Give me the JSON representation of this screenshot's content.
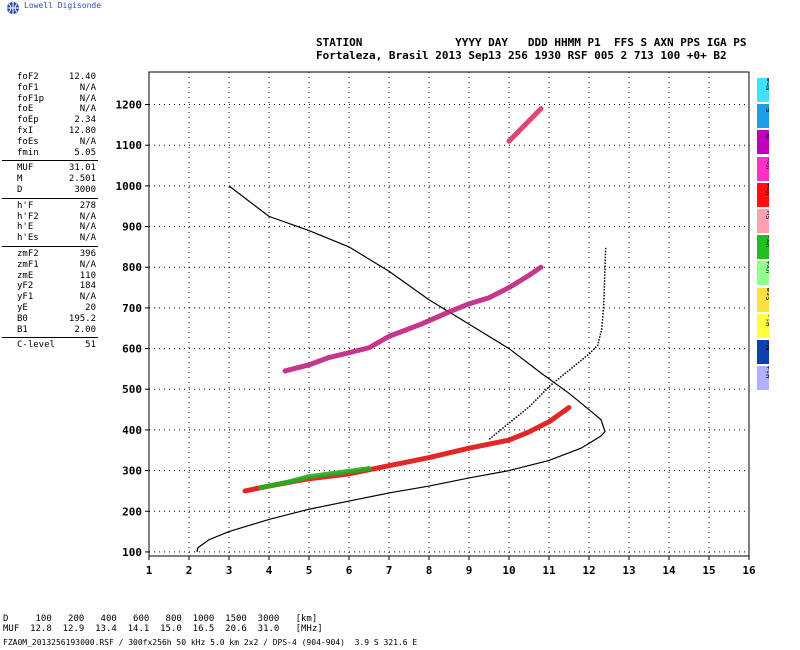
{
  "app": {
    "logo_text": "Lowell Digisonde"
  },
  "header": {
    "line1": "STATION              YYYY DAY   DDD HHMM P1  FFS S AXN PPS IGA PS",
    "line2": "Fortaleza, Brasil 2013 Sep13 256 1930 RSF 005 2 713 100 +0+ B2"
  },
  "params": [
    {
      "k": "foF2",
      "v": "12.40"
    },
    {
      "k": "foF1",
      "v": "N/A"
    },
    {
      "k": "foF1p",
      "v": "N/A"
    },
    {
      "k": "foE",
      "v": "N/A"
    },
    {
      "k": "foEp",
      "v": "2.34"
    },
    {
      "k": "fxI",
      "v": "12.80"
    },
    {
      "k": "foEs",
      "v": "N/A"
    },
    {
      "k": "fmin",
      "v": "5.05"
    },
    {
      "k": "MUF",
      "v": "31.01"
    },
    {
      "k": "M",
      "v": "2.501"
    },
    {
      "k": "D",
      "v": "3000"
    },
    {
      "k": "h'F",
      "v": "278"
    },
    {
      "k": "h'F2",
      "v": "N/A"
    },
    {
      "k": "h'E",
      "v": "N/A"
    },
    {
      "k": "h'Es",
      "v": "N/A"
    },
    {
      "k": "zmF2",
      "v": "396"
    },
    {
      "k": "zmF1",
      "v": "N/A"
    },
    {
      "k": "zmE",
      "v": "110"
    },
    {
      "k": "yF2",
      "v": "184"
    },
    {
      "k": "yF1",
      "v": "N/A"
    },
    {
      "k": "yE",
      "v": "20"
    },
    {
      "k": "B0",
      "v": "195.2"
    },
    {
      "k": "B1",
      "v": "2.00"
    },
    {
      "k": "C-level",
      "v": "51"
    }
  ],
  "legend": [
    {
      "label": "Nne",
      "color": "#40e0ff"
    },
    {
      "label": "E",
      "color": "#1aa0e8"
    },
    {
      "label": "W",
      "color": "#c000c0"
    },
    {
      "label": "Vo-",
      "color": "#ff30c8"
    },
    {
      "label": "Vo+",
      "color": "#ff1010"
    },
    {
      "label": "Sw",
      "color": "#ffa0b0"
    },
    {
      "label": "Vx-",
      "color": "#20c020"
    },
    {
      "label": "Vx+",
      "color": "#90ff90"
    },
    {
      "label": "Sse",
      "color": "#ffe040"
    },
    {
      "label": "Hi-",
      "color": "#ffff40"
    },
    {
      "label": "Nw",
      "color": "#1040b0"
    },
    {
      "label": "Hi+",
      "color": "#b0b0ff"
    }
  ],
  "footer": {
    "line1": "D     100   200   400   600   800  1000  1500  3000   [km]",
    "line2": "MUF  12.8  12.9  13.4  14.1  15.0  16.5  20.6  31.0   [MHz]",
    "line3": "FZA0M_2013256193000.RSF / 300fx256h 50 kHz 5.0 km 2x2 / DPS-4 (904-904)  3.9 S 321.6 E"
  },
  "chart_data": {
    "type": "scatter",
    "title": "",
    "xlabel": "",
    "ylabel": "",
    "xlim": [
      1,
      16
    ],
    "ylim": [
      90,
      1280
    ],
    "grid": true,
    "x_ticks": [
      1,
      2,
      3,
      4,
      5,
      6,
      7,
      8,
      9,
      10,
      11,
      12,
      13,
      14,
      15,
      16
    ],
    "y_ticks": [
      100,
      200,
      300,
      400,
      500,
      600,
      700,
      800,
      900,
      1000,
      1100,
      1200
    ],
    "series": [
      {
        "role": "profile",
        "kind": "line",
        "color": "#000000",
        "points": [
          [
            2.2,
            100
          ],
          [
            2.22,
            110
          ],
          [
            2.5,
            130
          ],
          [
            3,
            150
          ],
          [
            4,
            180
          ],
          [
            5,
            205
          ],
          [
            6,
            225
          ],
          [
            7,
            245
          ],
          [
            8,
            262
          ],
          [
            9,
            282
          ],
          [
            10,
            300
          ],
          [
            11,
            325
          ],
          [
            11.8,
            355
          ],
          [
            12.3,
            385
          ],
          [
            12.4,
            396
          ],
          [
            12.3,
            425
          ],
          [
            12.0,
            450
          ],
          [
            11.5,
            490
          ],
          [
            10.8,
            540
          ],
          [
            10.0,
            600
          ],
          [
            9.0,
            660
          ],
          [
            8.0,
            720
          ],
          [
            7.0,
            790
          ],
          [
            6.0,
            850
          ],
          [
            5.0,
            890
          ],
          [
            4.0,
            925
          ],
          [
            3.0,
            1000
          ]
        ]
      },
      {
        "role": "model trace",
        "kind": "dots",
        "color": "#000000",
        "points": [
          [
            9.5,
            380
          ],
          [
            10,
            420
          ],
          [
            10.5,
            460
          ],
          [
            11,
            510
          ],
          [
            11.5,
            550
          ],
          [
            12.0,
            590
          ],
          [
            12.2,
            610
          ],
          [
            12.3,
            650
          ],
          [
            12.35,
            710
          ],
          [
            12.4,
            855
          ]
        ]
      },
      {
        "role": "echo o-trace",
        "kind": "band",
        "color": "#e01010",
        "points": [
          [
            3.4,
            250
          ],
          [
            4,
            262
          ],
          [
            5,
            280
          ],
          [
            6,
            292
          ],
          [
            7,
            312
          ],
          [
            7.5,
            322
          ],
          [
            8,
            332
          ],
          [
            9,
            355
          ],
          [
            10,
            375
          ],
          [
            10.5,
            395
          ],
          [
            11,
            420
          ],
          [
            11.5,
            455
          ]
        ]
      },
      {
        "role": "echo x-trace",
        "kind": "band",
        "color": "#20b020",
        "points": [
          [
            3.8,
            258
          ],
          [
            4.5,
            272
          ],
          [
            5,
            285
          ],
          [
            6,
            298
          ],
          [
            6.5,
            305
          ]
        ]
      },
      {
        "role": "echo multiple",
        "kind": "band",
        "color": "#c02080",
        "points": [
          [
            4.4,
            545
          ],
          [
            5,
            560
          ],
          [
            5.5,
            578
          ],
          [
            6,
            590
          ],
          [
            6.5,
            602
          ],
          [
            7,
            630
          ],
          [
            7.8,
            660
          ],
          [
            8.5,
            690
          ],
          [
            9,
            710
          ],
          [
            9.5,
            725
          ],
          [
            10,
            750
          ],
          [
            10.5,
            780
          ],
          [
            10.8,
            800
          ]
        ]
      },
      {
        "role": "echo 3rd multiple",
        "kind": "band",
        "color": "#e03060",
        "points": [
          [
            10.0,
            1110
          ],
          [
            10.4,
            1150
          ],
          [
            10.8,
            1190
          ]
        ]
      }
    ]
  }
}
